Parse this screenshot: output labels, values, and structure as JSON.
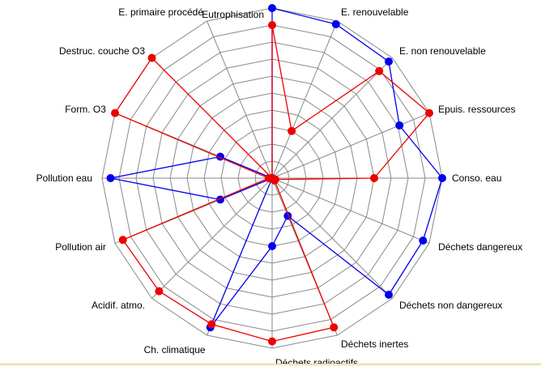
{
  "chart_data": {
    "type": "radar",
    "categories": [
      "Eutrophisation",
      "E. renouvelable",
      "E. non renouvelable",
      "Epuis. ressources",
      "Conso. eau",
      "Déchets dangereux",
      "Déchets non dangereux",
      "Déchets inertes",
      "Déchets radioactifs",
      "Ch. climatique",
      "Acidif. atmo.",
      "Pollution air",
      "Pollution eau",
      "Form. O3",
      "Destruc. couche O3",
      "E. primaire procédé"
    ],
    "rlim": [
      0,
      1
    ],
    "rings": 10,
    "grid": true,
    "series": [
      {
        "color": "#0000ee",
        "values": [
          1.0,
          0.98,
          0.97,
          0.81,
          1.0,
          0.96,
          0.97,
          0.24,
          0.4,
          0.95,
          0.0,
          0.33,
          0.95,
          0.33,
          0.0,
          0.0
        ]
      },
      {
        "color": "#ee0000",
        "values": [
          0.9,
          0.3,
          0.89,
          1.0,
          0.6,
          0.02,
          0.02,
          0.95,
          0.96,
          0.93,
          0.94,
          0.95,
          0.02,
          1.0,
          1.0,
          0.0
        ]
      }
    ]
  }
}
